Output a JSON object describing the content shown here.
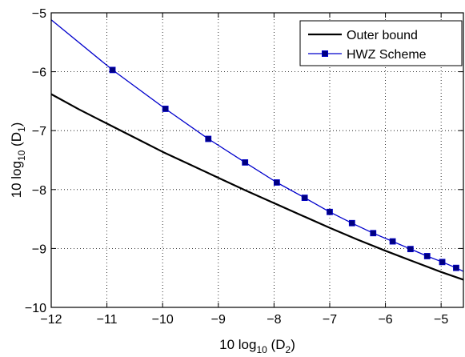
{
  "chart_data": {
    "type": "line",
    "xlabel": {
      "prefix": "10 log",
      "sub": "10",
      "mid": " (D",
      "sub2": "2",
      "suffix": ")"
    },
    "ylabel": {
      "prefix": "10 log",
      "sub": "10",
      "mid": " (D",
      "sub2": "1",
      "suffix": ")"
    },
    "xlim": [
      -12,
      -4.6
    ],
    "ylim": [
      -10,
      -5
    ],
    "xticks": [
      -12,
      -11,
      -10,
      -9,
      -8,
      -7,
      -6,
      -5
    ],
    "xtick_labels": [
      "−12",
      "−11",
      "−10",
      "−9",
      "−8",
      "−7",
      "−6",
      "−5"
    ],
    "yticks": [
      -10,
      -9,
      -8,
      -7,
      -6,
      -5
    ],
    "ytick_labels": [
      "−10",
      "−9",
      "−8",
      "−7",
      "−6",
      "−5"
    ],
    "grid": true,
    "legend_position": "top-right",
    "series": [
      {
        "name": "Outer bound",
        "color": "#000000",
        "marker": "none",
        "x": [
          -12,
          -11.5,
          -11,
          -10.5,
          -10,
          -9.5,
          -9,
          -8.5,
          -8,
          -7.5,
          -7,
          -6.5,
          -6,
          -5.5,
          -5,
          -4.6
        ],
        "y": [
          -6.38,
          -6.64,
          -6.88,
          -7.12,
          -7.36,
          -7.58,
          -7.8,
          -8.02,
          -8.23,
          -8.44,
          -8.65,
          -8.85,
          -9.04,
          -9.22,
          -9.4,
          -9.53
        ]
      },
      {
        "name": "HWZ Scheme",
        "color": "#0000cc",
        "marker": "square",
        "marker_color": "#000080",
        "x": [
          -12,
          -10.9,
          -9.95,
          -9.18,
          -8.52,
          -7.95,
          -7.45,
          -7.0,
          -6.6,
          -6.22,
          -5.87,
          -5.55,
          -5.25,
          -4.98,
          -4.73,
          -4.6
        ],
        "y": [
          -5.12,
          -5.97,
          -6.63,
          -7.14,
          -7.54,
          -7.88,
          -8.14,
          -8.38,
          -8.57,
          -8.74,
          -8.88,
          -9.01,
          -9.13,
          -9.23,
          -9.33,
          -9.39
        ],
        "marker_indices": [
          1,
          2,
          3,
          4,
          5,
          6,
          7,
          8,
          9,
          10,
          11,
          12,
          13,
          14
        ]
      }
    ]
  }
}
